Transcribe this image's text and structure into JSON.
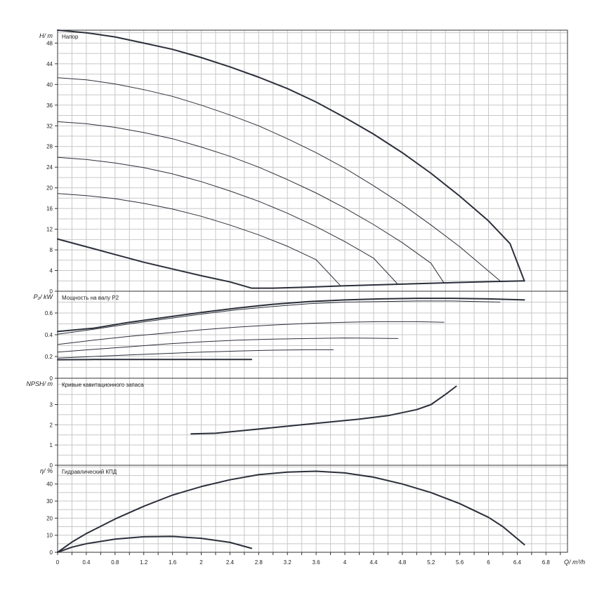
{
  "colors": {
    "curve": "#2b2f3a",
    "grid": "#c8c8c8",
    "frame": "#333333",
    "background": "#ffffff"
  },
  "chart_data": [
    {
      "id": "head",
      "type": "line",
      "title": "Напор",
      "ylabel": "H/ m",
      "xlim": [
        0,
        7.1
      ],
      "ylim": [
        0,
        50.5
      ],
      "yticks": [
        0,
        4,
        8,
        12,
        16,
        20,
        24,
        28,
        32,
        36,
        40,
        44,
        48
      ],
      "grid": true,
      "series": [
        {
          "weight": "bold",
          "points": [
            [
              0,
              50.5
            ],
            [
              0.4,
              50
            ],
            [
              0.8,
              49.2
            ],
            [
              1.2,
              48
            ],
            [
              1.6,
              46.8
            ],
            [
              2.0,
              45.2
            ],
            [
              2.4,
              43.4
            ],
            [
              2.8,
              41.4
            ],
            [
              3.2,
              39.2
            ],
            [
              3.6,
              36.6
            ],
            [
              4.0,
              33.6
            ],
            [
              4.4,
              30.4
            ],
            [
              4.8,
              26.8
            ],
            [
              5.2,
              22.8
            ],
            [
              5.6,
              18.4
            ],
            [
              6.0,
              13.6
            ],
            [
              6.3,
              9.2
            ],
            [
              6.5,
              2.0
            ]
          ]
        },
        {
          "weight": "thin",
          "points": [
            [
              0,
              41.3
            ],
            [
              0.4,
              40.9
            ],
            [
              0.8,
              40.1
            ],
            [
              1.2,
              39.0
            ],
            [
              1.6,
              37.7
            ],
            [
              2.0,
              36.0
            ],
            [
              2.4,
              34.1
            ],
            [
              2.8,
              32.0
            ],
            [
              3.2,
              29.5
            ],
            [
              3.6,
              26.8
            ],
            [
              4.0,
              23.8
            ],
            [
              4.4,
              20.4
            ],
            [
              4.8,
              16.8
            ],
            [
              5.2,
              12.8
            ],
            [
              5.6,
              8.6
            ],
            [
              6.17,
              1.9
            ]
          ]
        },
        {
          "weight": "thin",
          "points": [
            [
              0,
              32.8
            ],
            [
              0.4,
              32.4
            ],
            [
              0.8,
              31.7
            ],
            [
              1.2,
              30.7
            ],
            [
              1.6,
              29.5
            ],
            [
              2.0,
              27.9
            ],
            [
              2.4,
              26.1
            ],
            [
              2.8,
              24.0
            ],
            [
              3.2,
              21.6
            ],
            [
              3.6,
              19.0
            ],
            [
              4.0,
              16.1
            ],
            [
              4.4,
              12.9
            ],
            [
              4.8,
              9.4
            ],
            [
              5.2,
              5.4
            ],
            [
              5.38,
              1.6
            ]
          ]
        },
        {
          "weight": "thin",
          "points": [
            [
              0,
              25.9
            ],
            [
              0.4,
              25.5
            ],
            [
              0.8,
              24.8
            ],
            [
              1.2,
              23.9
            ],
            [
              1.6,
              22.7
            ],
            [
              2.0,
              21.2
            ],
            [
              2.4,
              19.4
            ],
            [
              2.8,
              17.4
            ],
            [
              3.2,
              15.1
            ],
            [
              3.6,
              12.5
            ],
            [
              4.0,
              9.6
            ],
            [
              4.4,
              6.4
            ],
            [
              4.74,
              1.3
            ]
          ]
        },
        {
          "weight": "thin",
          "points": [
            [
              0,
              18.9
            ],
            [
              0.4,
              18.5
            ],
            [
              0.8,
              17.9
            ],
            [
              1.2,
              17.0
            ],
            [
              1.6,
              15.9
            ],
            [
              2.0,
              14.5
            ],
            [
              2.4,
              12.8
            ],
            [
              2.8,
              10.9
            ],
            [
              3.2,
              8.7
            ],
            [
              3.6,
              6.1
            ],
            [
              3.93,
              1.2
            ]
          ]
        },
        {
          "weight": "bold",
          "points": [
            [
              0,
              10.1
            ],
            [
              0.4,
              8.6
            ],
            [
              0.8,
              7.1
            ],
            [
              1.2,
              5.6
            ],
            [
              1.6,
              4.3
            ],
            [
              2.0,
              3.0
            ],
            [
              2.4,
              1.8
            ],
            [
              2.7,
              0.6
            ],
            [
              3.0,
              0.6
            ],
            [
              3.5,
              0.8
            ],
            [
              4.0,
              1.05
            ],
            [
              4.5,
              1.25
            ],
            [
              5.0,
              1.45
            ],
            [
              5.5,
              1.65
            ],
            [
              6.0,
              1.85
            ],
            [
              6.5,
              2.0
            ]
          ]
        }
      ]
    },
    {
      "id": "power",
      "type": "line",
      "title": "Мощность на валу P2",
      "ylabel": "P₂/ kW",
      "xlim": [
        0,
        7.1
      ],
      "ylim": [
        0,
        0.8
      ],
      "yticks": [
        0,
        0.2,
        0.4,
        0.6
      ],
      "yticklabels": [
        "0",
        "0.2",
        "0.4",
        "0.6"
      ],
      "grid": true,
      "series": [
        {
          "weight": "bold",
          "points": [
            [
              0,
              0.43
            ],
            [
              0.5,
              0.46
            ],
            [
              1.0,
              0.515
            ],
            [
              1.5,
              0.56
            ],
            [
              2.0,
              0.605
            ],
            [
              2.5,
              0.645
            ],
            [
              3.0,
              0.68
            ],
            [
              3.5,
              0.705
            ],
            [
              4.0,
              0.72
            ],
            [
              4.5,
              0.73
            ],
            [
              5.0,
              0.735
            ],
            [
              5.5,
              0.735
            ],
            [
              6.0,
              0.73
            ],
            [
              6.5,
              0.72
            ]
          ]
        },
        {
          "weight": "thin",
          "points": [
            [
              0,
              0.405
            ],
            [
              0.5,
              0.45
            ],
            [
              1.0,
              0.5
            ],
            [
              1.5,
              0.545
            ],
            [
              2.0,
              0.59
            ],
            [
              2.5,
              0.63
            ],
            [
              3.0,
              0.66
            ],
            [
              3.5,
              0.685
            ],
            [
              4.0,
              0.7
            ],
            [
              4.5,
              0.705
            ],
            [
              5.0,
              0.71
            ],
            [
              5.5,
              0.71
            ],
            [
              6.16,
              0.7
            ]
          ]
        },
        {
          "weight": "thin",
          "points": [
            [
              0,
              0.31
            ],
            [
              0.5,
              0.35
            ],
            [
              1.0,
              0.385
            ],
            [
              1.5,
              0.415
            ],
            [
              2.0,
              0.445
            ],
            [
              2.5,
              0.47
            ],
            [
              3.0,
              0.49
            ],
            [
              3.5,
              0.505
            ],
            [
              4.0,
              0.515
            ],
            [
              4.5,
              0.52
            ],
            [
              5.0,
              0.52
            ],
            [
              5.38,
              0.515
            ]
          ]
        },
        {
          "weight": "thin",
          "points": [
            [
              0,
              0.24
            ],
            [
              0.5,
              0.265
            ],
            [
              1.0,
              0.29
            ],
            [
              1.5,
              0.315
            ],
            [
              2.0,
              0.335
            ],
            [
              2.5,
              0.35
            ],
            [
              3.0,
              0.36
            ],
            [
              3.5,
              0.365
            ],
            [
              4.0,
              0.37
            ],
            [
              4.74,
              0.365
            ]
          ]
        },
        {
          "weight": "thin",
          "points": [
            [
              0,
              0.185
            ],
            [
              0.5,
              0.2
            ],
            [
              1.0,
              0.215
            ],
            [
              1.5,
              0.228
            ],
            [
              2.0,
              0.24
            ],
            [
              2.5,
              0.25
            ],
            [
              3.0,
              0.258
            ],
            [
              3.5,
              0.262
            ],
            [
              3.84,
              0.262
            ]
          ]
        },
        {
          "weight": "bold",
          "points": [
            [
              0,
              0.17
            ],
            [
              0.5,
              0.172
            ],
            [
              1.0,
              0.172
            ],
            [
              1.5,
              0.172
            ],
            [
              2.0,
              0.172
            ],
            [
              2.7,
              0.172
            ]
          ]
        }
      ]
    },
    {
      "id": "npsh",
      "type": "line",
      "title": "Кривые кавитационного запаса",
      "ylabel": "NPSH/ m",
      "xlim": [
        0,
        7.1
      ],
      "ylim": [
        0,
        4.3
      ],
      "yticks": [
        0,
        1,
        2,
        3
      ],
      "grid": true,
      "series": [
        {
          "weight": "bold",
          "points": [
            [
              1.86,
              1.55
            ],
            [
              2.2,
              1.58
            ],
            [
              2.6,
              1.72
            ],
            [
              3.0,
              1.86
            ],
            [
              3.4,
              2.0
            ],
            [
              3.8,
              2.14
            ],
            [
              4.2,
              2.28
            ],
            [
              4.6,
              2.45
            ],
            [
              5.0,
              2.75
            ],
            [
              5.2,
              3.0
            ],
            [
              5.4,
              3.5
            ],
            [
              5.55,
              3.9
            ]
          ]
        }
      ]
    },
    {
      "id": "efficiency",
      "type": "line",
      "title": "Гидравлический КПД",
      "ylabel": "η/ %",
      "xlabel": "Q/ m³/h",
      "xlim": [
        0,
        7.1
      ],
      "ylim": [
        0,
        51
      ],
      "yticks": [
        0,
        10,
        20,
        30,
        40
      ],
      "xticks": [
        0,
        0.4,
        0.8,
        1.2,
        1.6,
        2,
        2.4,
        2.8,
        3.2,
        3.6,
        4,
        4.4,
        4.8,
        5.2,
        5.6,
        6,
        6.4,
        6.8
      ],
      "xticklabels": [
        "0",
        "0.4",
        "0.8",
        "1.2",
        "1.6",
        "2",
        "2.4",
        "2.8",
        "3.2",
        "3.6",
        "4",
        "4.4",
        "4.8",
        "5.2",
        "5.6",
        "6",
        "6.4",
        "6.8"
      ],
      "grid": true,
      "series": [
        {
          "weight": "bold",
          "points": [
            [
              0,
              0
            ],
            [
              0.2,
              6
            ],
            [
              0.4,
              11
            ],
            [
              0.8,
              19.5
            ],
            [
              1.2,
              27
            ],
            [
              1.6,
              33.5
            ],
            [
              2.0,
              38.5
            ],
            [
              2.4,
              42.5
            ],
            [
              2.8,
              45.5
            ],
            [
              3.2,
              47
            ],
            [
              3.6,
              47.5
            ],
            [
              4.0,
              46.5
            ],
            [
              4.4,
              44
            ],
            [
              4.8,
              40
            ],
            [
              5.2,
              35
            ],
            [
              5.6,
              28.5
            ],
            [
              6.0,
              20.5
            ],
            [
              6.2,
              15
            ],
            [
              6.5,
              4.5
            ]
          ]
        },
        {
          "weight": "bold",
          "points": [
            [
              0,
              0
            ],
            [
              0.2,
              3
            ],
            [
              0.4,
              5
            ],
            [
              0.8,
              7.7
            ],
            [
              1.2,
              9.1
            ],
            [
              1.6,
              9.3
            ],
            [
              2.0,
              8.2
            ],
            [
              2.4,
              5.8
            ],
            [
              2.7,
              2.3
            ]
          ]
        }
      ]
    }
  ]
}
